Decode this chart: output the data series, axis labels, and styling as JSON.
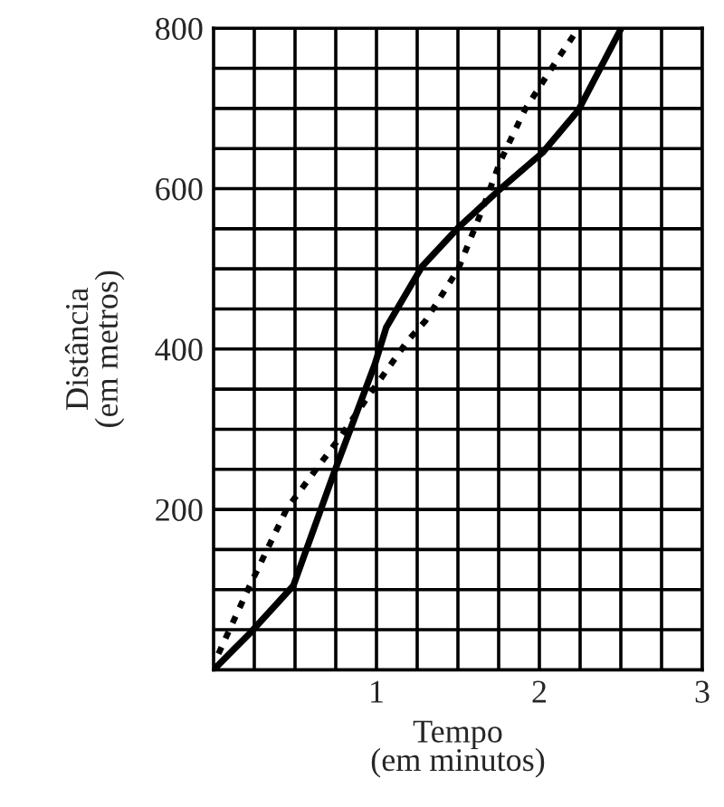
{
  "chart_data": {
    "type": "line",
    "xlabel": "Tempo\n(em minutos)",
    "ylabel": "Distância\n(em metros)",
    "xlim": [
      0,
      3
    ],
    "ylim": [
      0,
      800
    ],
    "xticks": [
      {
        "value": 0.25,
        "label": null
      },
      {
        "value": 0.5,
        "label": null
      },
      {
        "value": 0.75,
        "label": null
      },
      1,
      {
        "value": 1.25,
        "label": null
      },
      {
        "value": 1.5,
        "label": null
      },
      {
        "value": 1.75,
        "label": null
      },
      2,
      {
        "value": 2.25,
        "label": null
      },
      {
        "value": 2.5,
        "label": null
      },
      {
        "value": 2.75,
        "label": null
      },
      3
    ],
    "yticks": [
      {
        "value": 50,
        "label": null
      },
      {
        "value": 100,
        "label": null
      },
      {
        "value": 150,
        "label": null
      },
      200,
      {
        "value": 250,
        "label": null
      },
      {
        "value": 300,
        "label": null
      },
      {
        "value": 350,
        "label": null
      },
      400,
      {
        "value": 450,
        "label": null
      },
      {
        "value": 500,
        "label": null
      },
      {
        "value": 550,
        "label": null
      },
      600,
      {
        "value": 650,
        "label": null
      },
      {
        "value": 700,
        "label": null
      },
      {
        "value": 750,
        "label": null
      },
      800
    ],
    "grid": true,
    "legend": false,
    "series": [
      {
        "color": "#000000",
        "line_style": "solid",
        "x": [
          0,
          0.22,
          0.49,
          0.74,
          0.99,
          1.06,
          1.28,
          1.5,
          1.74,
          2.02,
          2.24,
          2.5
        ],
        "values": [
          0,
          45,
          105,
          246,
          381,
          427,
          503,
          551,
          596,
          645,
          698,
          799
        ]
      },
      {
        "color": "#000000",
        "line_style": "dotted",
        "x": [
          0.03,
          0.22,
          0.45,
          0.67,
          0.78,
          0.97,
          1.19,
          1.3,
          1.5,
          1.65,
          1.76,
          1.91,
          2.1,
          2.21
        ],
        "values": [
          20,
          104,
          201,
          261,
          291,
          347,
          410,
          435,
          499,
          574,
          634,
          698,
          758,
          791
        ]
      }
    ]
  }
}
